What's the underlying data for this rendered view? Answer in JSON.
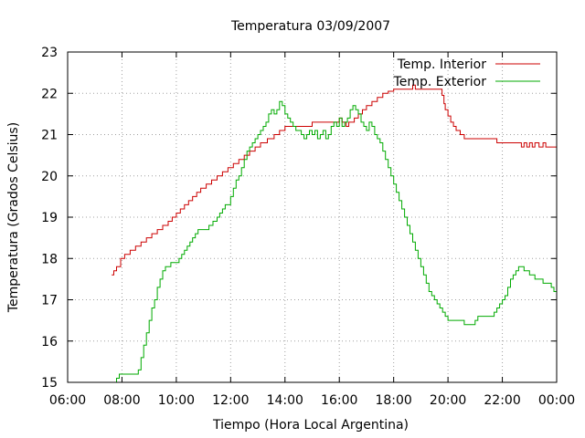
{
  "colors": {
    "background": "#ffffff",
    "axis": "#000000",
    "grid": "#a0a0a0",
    "series_interior": "#cc0000",
    "series_exterior": "#00aa00"
  },
  "chart_data": {
    "type": "line",
    "title": "Temperatura 03/09/2007",
    "xlabel": "Tiempo (Hora Local Argentina)",
    "ylabel": "Temperatura (Grados Celsius)",
    "x_unit": "hours",
    "xlim": [
      6,
      24
    ],
    "ylim": [
      15,
      23
    ],
    "x_ticks": [
      6,
      8,
      10,
      12,
      14,
      16,
      18,
      20,
      22,
      24
    ],
    "x_tick_labels": [
      "06:00",
      "08:00",
      "10:00",
      "12:00",
      "14:00",
      "16:00",
      "18:00",
      "20:00",
      "22:00",
      "00:00"
    ],
    "y_ticks": [
      15,
      16,
      17,
      18,
      19,
      20,
      21,
      22,
      23
    ],
    "y_tick_labels": [
      "15",
      "16",
      "17",
      "18",
      "19",
      "20",
      "21",
      "22",
      "23"
    ],
    "grid": true,
    "grid_style": "dotted",
    "legend_position": "top-right",
    "step": true,
    "series": [
      {
        "name": "Temp. Interior",
        "color": "#cc0000",
        "points": [
          [
            7.62,
            17.6
          ],
          [
            7.7,
            17.7
          ],
          [
            7.8,
            17.8
          ],
          [
            7.95,
            18.0
          ],
          [
            8.1,
            18.1
          ],
          [
            8.3,
            18.2
          ],
          [
            8.5,
            18.3
          ],
          [
            8.7,
            18.4
          ],
          [
            8.9,
            18.5
          ],
          [
            9.1,
            18.6
          ],
          [
            9.3,
            18.7
          ],
          [
            9.5,
            18.8
          ],
          [
            9.7,
            18.9
          ],
          [
            9.85,
            19.0
          ],
          [
            10.0,
            19.1
          ],
          [
            10.15,
            19.2
          ],
          [
            10.3,
            19.3
          ],
          [
            10.45,
            19.4
          ],
          [
            10.6,
            19.5
          ],
          [
            10.75,
            19.6
          ],
          [
            10.9,
            19.7
          ],
          [
            11.1,
            19.8
          ],
          [
            11.3,
            19.9
          ],
          [
            11.5,
            20.0
          ],
          [
            11.7,
            20.1
          ],
          [
            11.9,
            20.2
          ],
          [
            12.1,
            20.3
          ],
          [
            12.3,
            20.4
          ],
          [
            12.5,
            20.5
          ],
          [
            12.7,
            20.6
          ],
          [
            12.9,
            20.7
          ],
          [
            13.1,
            20.8
          ],
          [
            13.35,
            20.9
          ],
          [
            13.6,
            21.0
          ],
          [
            13.8,
            21.1
          ],
          [
            14.0,
            21.2
          ],
          [
            14.6,
            21.2
          ],
          [
            14.75,
            21.2
          ],
          [
            15.0,
            21.3
          ],
          [
            15.5,
            21.3
          ],
          [
            15.95,
            21.3
          ],
          [
            16.0,
            21.4
          ],
          [
            16.1,
            21.3
          ],
          [
            16.25,
            21.2
          ],
          [
            16.35,
            21.3
          ],
          [
            16.55,
            21.4
          ],
          [
            16.7,
            21.5
          ],
          [
            16.85,
            21.6
          ],
          [
            17.0,
            21.7
          ],
          [
            17.2,
            21.8
          ],
          [
            17.4,
            21.9
          ],
          [
            17.6,
            22.0
          ],
          [
            17.8,
            22.05
          ],
          [
            18.0,
            22.1
          ],
          [
            18.5,
            22.1
          ],
          [
            18.7,
            22.2
          ],
          [
            18.8,
            22.1
          ],
          [
            19.0,
            22.1
          ],
          [
            19.5,
            22.1
          ],
          [
            19.7,
            22.1
          ],
          [
            19.78,
            21.95
          ],
          [
            19.85,
            21.75
          ],
          [
            19.9,
            21.6
          ],
          [
            20.0,
            21.45
          ],
          [
            20.1,
            21.3
          ],
          [
            20.2,
            21.2
          ],
          [
            20.3,
            21.1
          ],
          [
            20.45,
            21.0
          ],
          [
            20.6,
            20.9
          ],
          [
            21.0,
            20.9
          ],
          [
            21.5,
            20.9
          ],
          [
            21.7,
            20.9
          ],
          [
            21.8,
            20.8
          ],
          [
            22.2,
            20.8
          ],
          [
            22.6,
            20.8
          ],
          [
            22.7,
            20.7
          ],
          [
            22.8,
            20.8
          ],
          [
            22.9,
            20.7
          ],
          [
            23.0,
            20.8
          ],
          [
            23.1,
            20.7
          ],
          [
            23.2,
            20.8
          ],
          [
            23.35,
            20.7
          ],
          [
            23.5,
            20.8
          ],
          [
            23.6,
            20.7
          ],
          [
            23.95,
            20.7
          ],
          [
            24.0,
            20.8
          ]
        ]
      },
      {
        "name": "Temp. Exterior",
        "color": "#00aa00",
        "points": [
          [
            7.7,
            15.0
          ],
          [
            7.8,
            15.1
          ],
          [
            7.9,
            15.2
          ],
          [
            8.5,
            15.2
          ],
          [
            8.6,
            15.3
          ],
          [
            8.7,
            15.6
          ],
          [
            8.8,
            15.9
          ],
          [
            8.9,
            16.2
          ],
          [
            9.0,
            16.5
          ],
          [
            9.1,
            16.8
          ],
          [
            9.2,
            17.0
          ],
          [
            9.3,
            17.3
          ],
          [
            9.4,
            17.5
          ],
          [
            9.5,
            17.7
          ],
          [
            9.6,
            17.8
          ],
          [
            9.7,
            17.8
          ],
          [
            9.8,
            17.9
          ],
          [
            10.0,
            17.9
          ],
          [
            10.1,
            18.0
          ],
          [
            10.2,
            18.1
          ],
          [
            10.3,
            18.2
          ],
          [
            10.4,
            18.3
          ],
          [
            10.5,
            18.4
          ],
          [
            10.6,
            18.5
          ],
          [
            10.7,
            18.6
          ],
          [
            10.8,
            18.7
          ],
          [
            11.0,
            18.7
          ],
          [
            11.2,
            18.8
          ],
          [
            11.35,
            18.9
          ],
          [
            11.5,
            19.0
          ],
          [
            11.6,
            19.1
          ],
          [
            11.7,
            19.2
          ],
          [
            11.8,
            19.3
          ],
          [
            11.9,
            19.3
          ],
          [
            12.0,
            19.5
          ],
          [
            12.1,
            19.7
          ],
          [
            12.2,
            19.9
          ],
          [
            12.3,
            20.0
          ],
          [
            12.4,
            20.2
          ],
          [
            12.5,
            20.4
          ],
          [
            12.6,
            20.6
          ],
          [
            12.7,
            20.7
          ],
          [
            12.8,
            20.8
          ],
          [
            12.9,
            20.9
          ],
          [
            13.0,
            21.0
          ],
          [
            13.1,
            21.1
          ],
          [
            13.2,
            21.2
          ],
          [
            13.3,
            21.3
          ],
          [
            13.4,
            21.5
          ],
          [
            13.5,
            21.6
          ],
          [
            13.6,
            21.5
          ],
          [
            13.7,
            21.6
          ],
          [
            13.8,
            21.8
          ],
          [
            13.9,
            21.7
          ],
          [
            14.0,
            21.5
          ],
          [
            14.1,
            21.4
          ],
          [
            14.2,
            21.3
          ],
          [
            14.3,
            21.2
          ],
          [
            14.4,
            21.1
          ],
          [
            14.5,
            21.1
          ],
          [
            14.6,
            21.0
          ],
          [
            14.7,
            20.9
          ],
          [
            14.8,
            21.0
          ],
          [
            14.9,
            21.1
          ],
          [
            15.0,
            21.0
          ],
          [
            15.1,
            21.1
          ],
          [
            15.2,
            20.9
          ],
          [
            15.3,
            21.0
          ],
          [
            15.4,
            21.1
          ],
          [
            15.5,
            20.9
          ],
          [
            15.6,
            21.0
          ],
          [
            15.7,
            21.2
          ],
          [
            15.8,
            21.3
          ],
          [
            15.9,
            21.2
          ],
          [
            16.0,
            21.4
          ],
          [
            16.1,
            21.2
          ],
          [
            16.2,
            21.3
          ],
          [
            16.3,
            21.4
          ],
          [
            16.4,
            21.6
          ],
          [
            16.5,
            21.7
          ],
          [
            16.6,
            21.6
          ],
          [
            16.7,
            21.5
          ],
          [
            16.8,
            21.3
          ],
          [
            16.9,
            21.2
          ],
          [
            17.0,
            21.1
          ],
          [
            17.1,
            21.3
          ],
          [
            17.2,
            21.2
          ],
          [
            17.3,
            21.0
          ],
          [
            17.4,
            20.9
          ],
          [
            17.5,
            20.8
          ],
          [
            17.6,
            20.6
          ],
          [
            17.7,
            20.4
          ],
          [
            17.8,
            20.2
          ],
          [
            17.9,
            20.0
          ],
          [
            18.0,
            19.8
          ],
          [
            18.1,
            19.6
          ],
          [
            18.2,
            19.4
          ],
          [
            18.3,
            19.2
          ],
          [
            18.4,
            19.0
          ],
          [
            18.5,
            18.8
          ],
          [
            18.6,
            18.6
          ],
          [
            18.7,
            18.4
          ],
          [
            18.8,
            18.2
          ],
          [
            18.9,
            18.0
          ],
          [
            19.0,
            17.8
          ],
          [
            19.1,
            17.6
          ],
          [
            19.2,
            17.4
          ],
          [
            19.3,
            17.2
          ],
          [
            19.4,
            17.1
          ],
          [
            19.5,
            17.0
          ],
          [
            19.6,
            16.9
          ],
          [
            19.7,
            16.8
          ],
          [
            19.8,
            16.7
          ],
          [
            19.9,
            16.6
          ],
          [
            20.0,
            16.5
          ],
          [
            20.5,
            16.5
          ],
          [
            20.6,
            16.4
          ],
          [
            20.9,
            16.4
          ],
          [
            21.0,
            16.5
          ],
          [
            21.1,
            16.6
          ],
          [
            21.6,
            16.6
          ],
          [
            21.7,
            16.7
          ],
          [
            21.8,
            16.8
          ],
          [
            21.9,
            16.9
          ],
          [
            22.0,
            17.0
          ],
          [
            22.1,
            17.1
          ],
          [
            22.2,
            17.3
          ],
          [
            22.3,
            17.5
          ],
          [
            22.4,
            17.6
          ],
          [
            22.5,
            17.7
          ],
          [
            22.6,
            17.8
          ],
          [
            22.7,
            17.8
          ],
          [
            22.8,
            17.7
          ],
          [
            23.0,
            17.6
          ],
          [
            23.2,
            17.5
          ],
          [
            23.5,
            17.4
          ],
          [
            23.8,
            17.3
          ],
          [
            23.9,
            17.2
          ],
          [
            24.0,
            17.2
          ]
        ]
      }
    ]
  }
}
